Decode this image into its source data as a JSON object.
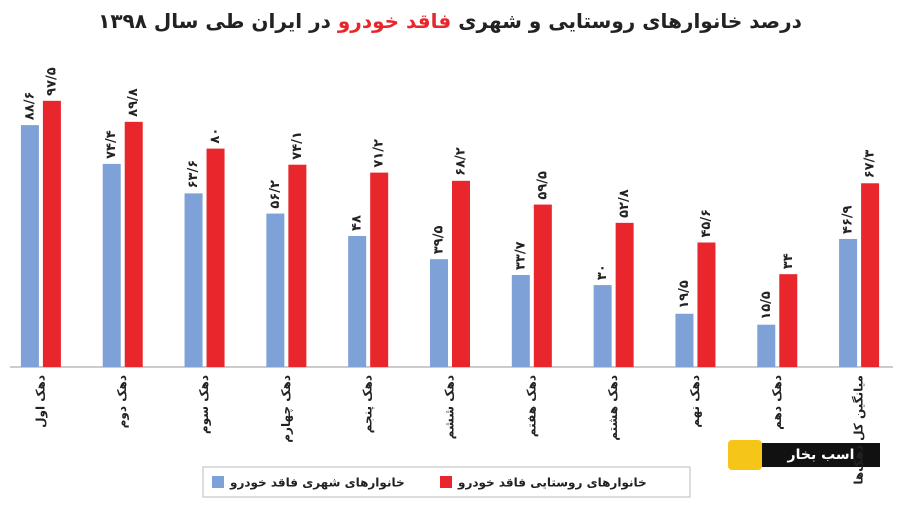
{
  "chart_data": {
    "type": "bar",
    "title": [
      "درصد خانوارهای روستایی و شهری ",
      "فاقد خودرو",
      " در ایران طی سال ۱۳۹۸"
    ],
    "title_colors": [
      "#222222",
      "#e8262b",
      "#222222"
    ],
    "categories": [
      "دهک اول",
      "دهک دوم",
      "دهک سوم",
      "دهک چهارم",
      "دهک پنجم",
      "دهک ششم",
      "دهک هفتم",
      "دهک هشتم",
      "دهک نهم",
      "دهک دهم",
      "میانگین کل دهک‌ها"
    ],
    "series": [
      {
        "name": "خانوارهای شهری فاقد خودرو",
        "color": "#7ea1d8",
        "values": [
          88.6,
          74.4,
          63.6,
          56.2,
          48,
          39.5,
          33.7,
          30,
          19.5,
          15.5,
          46.9
        ],
        "value_labels": [
          "۸۸/۶",
          "۷۴/۴",
          "۶۳/۶",
          "۵۶/۲",
          "۴۸",
          "۳۹/۵",
          "۳۳/۷",
          "۳۰",
          "۱۹/۵",
          "۱۵/۵",
          "۴۶/۹"
        ]
      },
      {
        "name": "خانوارهای روستایی فاقد خودرو",
        "color": "#e8262b",
        "values": [
          97.5,
          89.8,
          80,
          74.1,
          71.2,
          68.2,
          59.5,
          52.8,
          45.6,
          34,
          67.3
        ],
        "value_labels": [
          "۹۷/۵",
          "۸۹/۸",
          "۸۰",
          "۷۴/۱",
          "۷۱/۲",
          "۶۸/۲",
          "۵۹/۵",
          "۵۲/۸",
          "۴۵/۶",
          "۳۴",
          "۶۷/۳"
        ]
      }
    ],
    "ylim": [
      0,
      100
    ],
    "watermark": "اسب بخار"
  }
}
